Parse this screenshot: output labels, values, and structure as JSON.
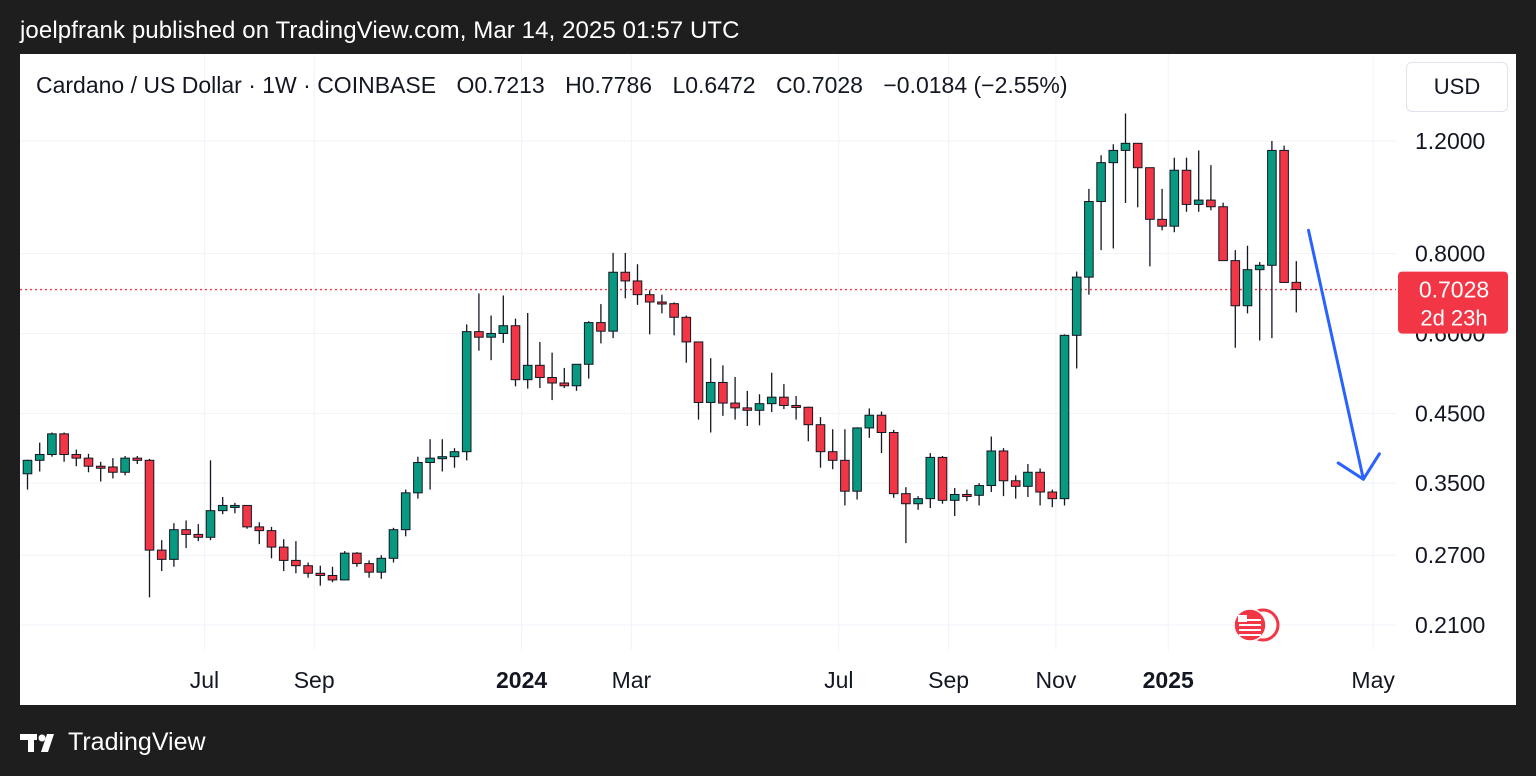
{
  "header": {
    "published_line": "joelpfrank published on TradingView.com, Mar 14, 2025 01:57 UTC"
  },
  "legend": {
    "symbol": "Cardano / US Dollar · 1W · COINBASE",
    "open": "O0.7213",
    "high": "H0.7786",
    "low": "L0.6472",
    "close": "C0.7028",
    "change": "−0.0184 (−2.55%)"
  },
  "currency_button": {
    "label": "USD"
  },
  "price_tag": {
    "price": "0.7028",
    "countdown": "2d 23h",
    "color": "#f23645"
  },
  "footer": {
    "brand": "TradingView"
  },
  "colors": {
    "up": "#089981",
    "down": "#f23645",
    "arrow": "#2962ff",
    "grid": "#f0f3fa"
  },
  "chart_data": {
    "type": "candlestick",
    "timeframe": "1W",
    "y_scale": "log",
    "y_ticks": [
      "0.2100",
      "0.2700",
      "0.3500",
      "0.4500",
      "0.6000",
      "0.8000",
      "1.2000"
    ],
    "x_ticks": [
      {
        "label": "Jul",
        "bold": false,
        "index": 14.5
      },
      {
        "label": "Sep",
        "bold": false,
        "index": 23.5
      },
      {
        "label": "2024",
        "bold": true,
        "index": 40.5
      },
      {
        "label": "Mar",
        "bold": false,
        "index": 49.5
      },
      {
        "label": "Jul",
        "bold": false,
        "index": 66.5
      },
      {
        "label": "Sep",
        "bold": false,
        "index": 75.5
      },
      {
        "label": "Nov",
        "bold": false,
        "index": 84.3
      },
      {
        "label": "2025",
        "bold": true,
        "index": 93.5
      },
      {
        "label": "May",
        "bold": false,
        "index": 110.3
      }
    ],
    "last_price": 0.7028,
    "candles": [
      [
        0.362,
        0.381,
        0.342,
        0.38
      ],
      [
        0.38,
        0.405,
        0.365,
        0.388
      ],
      [
        0.388,
        0.42,
        0.385,
        0.418
      ],
      [
        0.418,
        0.42,
        0.378,
        0.388
      ],
      [
        0.388,
        0.395,
        0.372,
        0.383
      ],
      [
        0.383,
        0.389,
        0.364,
        0.372
      ],
      [
        0.372,
        0.378,
        0.352,
        0.371
      ],
      [
        0.371,
        0.383,
        0.356,
        0.364
      ],
      [
        0.364,
        0.386,
        0.36,
        0.383
      ],
      [
        0.383,
        0.386,
        0.375,
        0.38
      ],
      [
        0.38,
        0.382,
        0.232,
        0.275
      ],
      [
        0.275,
        0.285,
        0.255,
        0.266
      ],
      [
        0.266,
        0.303,
        0.259,
        0.296
      ],
      [
        0.296,
        0.306,
        0.277,
        0.291
      ],
      [
        0.291,
        0.302,
        0.284,
        0.288
      ],
      [
        0.288,
        0.38,
        0.285,
        0.317
      ],
      [
        0.317,
        0.333,
        0.313,
        0.323
      ],
      [
        0.323,
        0.326,
        0.314,
        0.323
      ],
      [
        0.323,
        0.323,
        0.297,
        0.299
      ],
      [
        0.299,
        0.304,
        0.281,
        0.295
      ],
      [
        0.295,
        0.299,
        0.267,
        0.278
      ],
      [
        0.278,
        0.286,
        0.255,
        0.265
      ],
      [
        0.265,
        0.284,
        0.253,
        0.26
      ],
      [
        0.26,
        0.263,
        0.249,
        0.253
      ],
      [
        0.253,
        0.26,
        0.242,
        0.251
      ],
      [
        0.251,
        0.259,
        0.245,
        0.247
      ],
      [
        0.247,
        0.274,
        0.247,
        0.272
      ],
      [
        0.272,
        0.273,
        0.259,
        0.262
      ],
      [
        0.262,
        0.265,
        0.249,
        0.254
      ],
      [
        0.254,
        0.27,
        0.248,
        0.267
      ],
      [
        0.267,
        0.298,
        0.263,
        0.296
      ],
      [
        0.296,
        0.342,
        0.289,
        0.338
      ],
      [
        0.338,
        0.385,
        0.331,
        0.377
      ],
      [
        0.377,
        0.41,
        0.342,
        0.383
      ],
      [
        0.383,
        0.41,
        0.365,
        0.385
      ],
      [
        0.385,
        0.397,
        0.37,
        0.392
      ],
      [
        0.392,
        0.62,
        0.38,
        0.604
      ],
      [
        0.604,
        0.693,
        0.564,
        0.592
      ],
      [
        0.592,
        0.64,
        0.545,
        0.6
      ],
      [
        0.6,
        0.688,
        0.58,
        0.617
      ],
      [
        0.617,
        0.633,
        0.496,
        0.508
      ],
      [
        0.508,
        0.646,
        0.492,
        0.535
      ],
      [
        0.535,
        0.582,
        0.493,
        0.512
      ],
      [
        0.512,
        0.56,
        0.472,
        0.502
      ],
      [
        0.502,
        0.53,
        0.493,
        0.497
      ],
      [
        0.497,
        0.533,
        0.488,
        0.537
      ],
      [
        0.537,
        0.627,
        0.51,
        0.624
      ],
      [
        0.624,
        0.667,
        0.579,
        0.605
      ],
      [
        0.605,
        0.802,
        0.59,
        0.748
      ],
      [
        0.748,
        0.802,
        0.681,
        0.725
      ],
      [
        0.725,
        0.77,
        0.665,
        0.69
      ],
      [
        0.69,
        0.701,
        0.598,
        0.672
      ],
      [
        0.672,
        0.69,
        0.645,
        0.668
      ],
      [
        0.668,
        0.671,
        0.596,
        0.636
      ],
      [
        0.636,
        0.64,
        0.54,
        0.582
      ],
      [
        0.582,
        0.582,
        0.44,
        0.468
      ],
      [
        0.468,
        0.549,
        0.42,
        0.503
      ],
      [
        0.503,
        0.535,
        0.446,
        0.467
      ],
      [
        0.467,
        0.513,
        0.44,
        0.459
      ],
      [
        0.459,
        0.488,
        0.43,
        0.455
      ],
      [
        0.455,
        0.482,
        0.431,
        0.466
      ],
      [
        0.466,
        0.521,
        0.452,
        0.477
      ],
      [
        0.477,
        0.5,
        0.457,
        0.463
      ],
      [
        0.463,
        0.479,
        0.44,
        0.46
      ],
      [
        0.46,
        0.461,
        0.407,
        0.432
      ],
      [
        0.432,
        0.444,
        0.37,
        0.392
      ],
      [
        0.392,
        0.425,
        0.368,
        0.38
      ],
      [
        0.38,
        0.425,
        0.323,
        0.34
      ],
      [
        0.34,
        0.428,
        0.33,
        0.427
      ],
      [
        0.427,
        0.458,
        0.412,
        0.447
      ],
      [
        0.447,
        0.453,
        0.39,
        0.42
      ],
      [
        0.42,
        0.424,
        0.332,
        0.337
      ],
      [
        0.337,
        0.345,
        0.282,
        0.325
      ],
      [
        0.325,
        0.334,
        0.318,
        0.331
      ],
      [
        0.331,
        0.39,
        0.32,
        0.384
      ],
      [
        0.384,
        0.386,
        0.325,
        0.329
      ],
      [
        0.329,
        0.344,
        0.311,
        0.336
      ],
      [
        0.336,
        0.342,
        0.328,
        0.335
      ],
      [
        0.335,
        0.35,
        0.323,
        0.347
      ],
      [
        0.347,
        0.414,
        0.339,
        0.393
      ],
      [
        0.393,
        0.397,
        0.334,
        0.353
      ],
      [
        0.353,
        0.36,
        0.331,
        0.346
      ],
      [
        0.346,
        0.375,
        0.333,
        0.364
      ],
      [
        0.364,
        0.369,
        0.323,
        0.339
      ],
      [
        0.339,
        0.342,
        0.321,
        0.331
      ],
      [
        0.331,
        0.598,
        0.323,
        0.596
      ],
      [
        0.596,
        0.75,
        0.529,
        0.735
      ],
      [
        0.735,
        1.01,
        0.69,
        0.965
      ],
      [
        0.965,
        1.14,
        0.81,
        1.11
      ],
      [
        1.11,
        1.186,
        0.815,
        1.16
      ],
      [
        1.16,
        1.325,
        0.96,
        1.19
      ],
      [
        1.19,
        1.19,
        0.945,
        1.09
      ],
      [
        1.09,
        1.09,
        0.764,
        0.905
      ],
      [
        0.905,
        1.01,
        0.87,
        0.883
      ],
      [
        0.883,
        1.13,
        0.864,
        1.08
      ],
      [
        1.08,
        1.13,
        0.93,
        0.955
      ],
      [
        0.955,
        1.16,
        0.93,
        0.97
      ],
      [
        0.97,
        1.1,
        0.935,
        0.947
      ],
      [
        0.947,
        0.961,
        0.785,
        0.78
      ],
      [
        0.78,
        0.81,
        0.57,
        0.663
      ],
      [
        0.663,
        0.823,
        0.645,
        0.755
      ],
      [
        0.755,
        0.776,
        0.585,
        0.767
      ],
      [
        0.767,
        1.2,
        0.59,
        1.16
      ],
      [
        1.16,
        1.18,
        0.72,
        0.721
      ],
      [
        0.7213,
        0.7786,
        0.6472,
        0.7028
      ]
    ],
    "annotation": {
      "type": "arrow",
      "direction": "down",
      "from_index": 105,
      "from_price": 0.87,
      "to_index": 109.5,
      "to_price": 0.355
    }
  }
}
